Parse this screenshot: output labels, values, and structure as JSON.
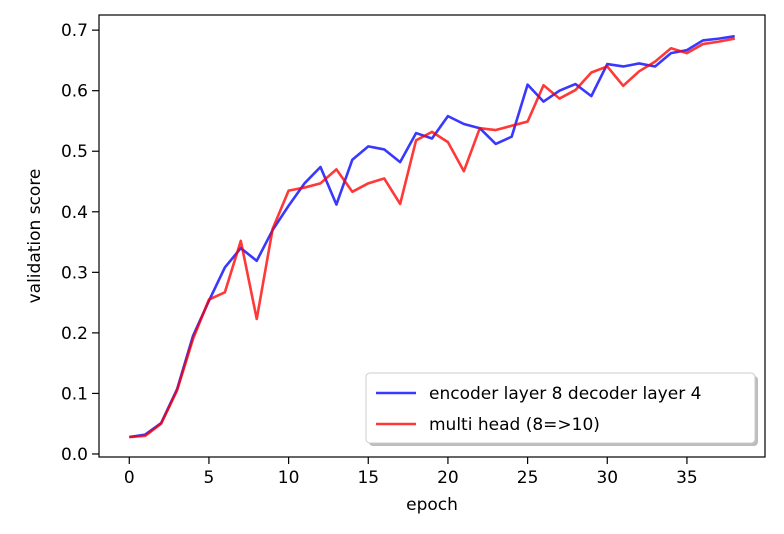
{
  "chart_data": {
    "type": "line",
    "title": "",
    "xlabel": "epoch",
    "ylabel": "validation score",
    "xlim": [
      -1.9,
      39.9
    ],
    "ylim": [
      -0.005,
      0.725
    ],
    "xticks": [
      0,
      5,
      10,
      15,
      20,
      25,
      30,
      35
    ],
    "yticks": [
      0.0,
      0.1,
      0.2,
      0.3,
      0.4,
      0.5,
      0.6,
      0.7
    ],
    "ytick_labels": [
      "0.0",
      "0.1",
      "0.2",
      "0.3",
      "0.4",
      "0.5",
      "0.6",
      "0.7"
    ],
    "grid": false,
    "legend_position": "lower-right",
    "x": [
      0,
      1,
      2,
      3,
      4,
      5,
      6,
      7,
      8,
      9,
      10,
      11,
      12,
      13,
      14,
      15,
      16,
      17,
      18,
      19,
      20,
      21,
      22,
      23,
      24,
      25,
      26,
      27,
      28,
      29,
      30,
      31,
      32,
      33,
      34,
      35,
      36,
      37,
      38
    ],
    "series": [
      {
        "name": "encoder layer 8 decoder layer 4",
        "color": "#0000ff",
        "values": [
          0.028,
          0.032,
          0.051,
          0.107,
          0.195,
          0.253,
          0.308,
          0.34,
          0.319,
          0.37,
          0.41,
          0.447,
          0.474,
          0.412,
          0.486,
          0.508,
          0.503,
          0.482,
          0.53,
          0.521,
          0.558,
          0.545,
          0.538,
          0.512,
          0.524,
          0.61,
          0.582,
          0.6,
          0.611,
          0.591,
          0.644,
          0.64,
          0.645,
          0.64,
          0.662,
          0.667,
          0.683,
          0.686,
          0.69
        ]
      },
      {
        "name": "multi head (8=>10)",
        "color": "#ff0000",
        "values": [
          0.028,
          0.03,
          0.05,
          0.105,
          0.19,
          0.255,
          0.267,
          0.352,
          0.223,
          0.372,
          0.435,
          0.44,
          0.447,
          0.47,
          0.433,
          0.447,
          0.455,
          0.413,
          0.518,
          0.532,
          0.515,
          0.467,
          0.538,
          0.535,
          0.542,
          0.549,
          0.609,
          0.587,
          0.601,
          0.63,
          0.64,
          0.608,
          0.632,
          0.648,
          0.67,
          0.662,
          0.677,
          0.681,
          0.686
        ]
      }
    ]
  }
}
